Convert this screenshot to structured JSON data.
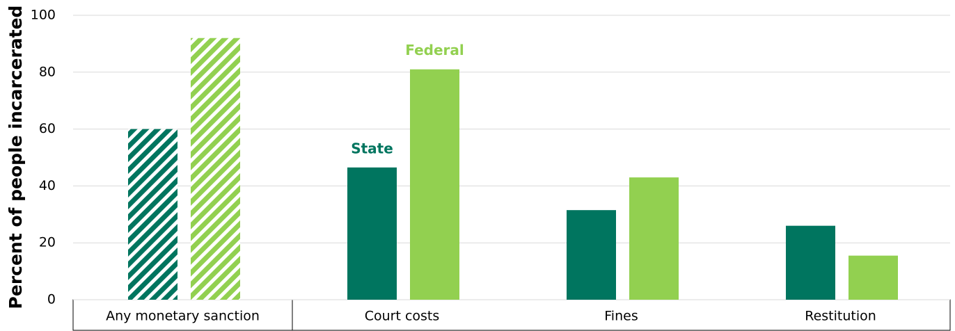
{
  "chart_data": {
    "type": "bar",
    "y_label": "Percent of people incarcerated",
    "categories": [
      "Any monetary sanction",
      "Court costs",
      "Fines",
      "Restitution"
    ],
    "series": [
      {
        "name": "State",
        "color": "#00755f",
        "values": [
          60,
          46.5,
          31.5,
          26
        ]
      },
      {
        "name": "Federal",
        "color": "#92d050",
        "values": [
          92,
          81,
          43,
          15.5
        ]
      }
    ],
    "hatched": [
      true,
      false,
      false,
      false
    ],
    "ylim": [
      0,
      100
    ],
    "yticks": [
      0,
      20,
      40,
      60,
      80,
      100
    ],
    "grid": true
  }
}
